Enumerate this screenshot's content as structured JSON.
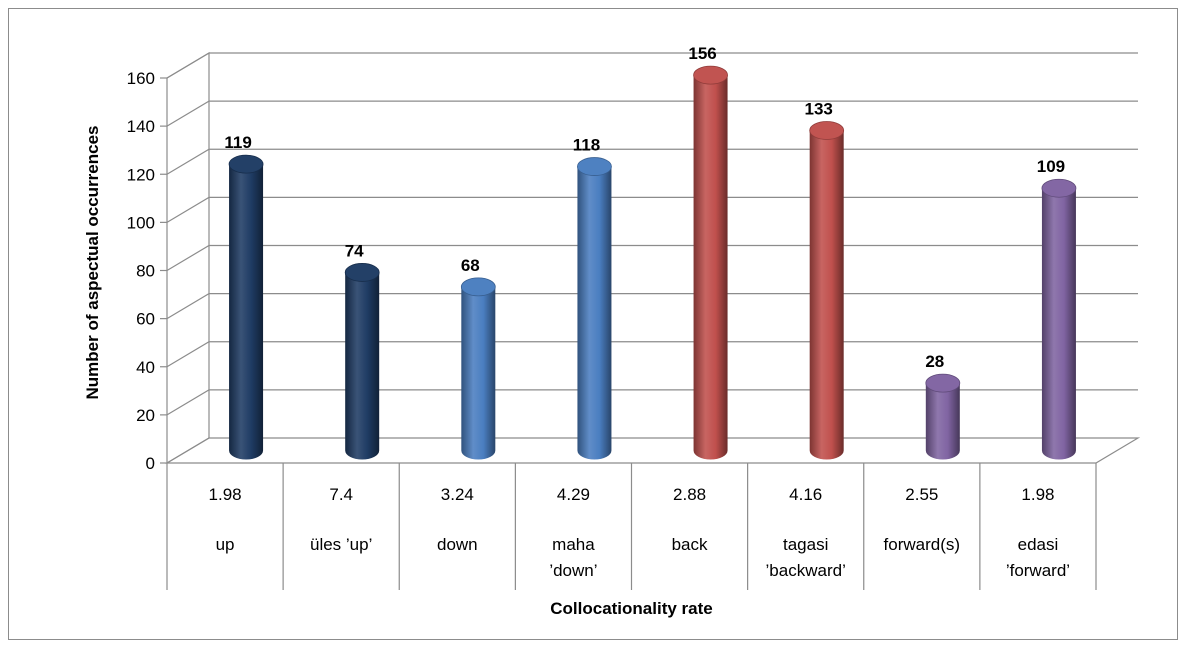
{
  "chart_data": {
    "type": "bar",
    "title": "",
    "xlabel": "Collocationality rate",
    "ylabel": "Number of aspectual occurrences",
    "ylim": [
      0,
      160
    ],
    "y_ticks": [
      "0",
      "20",
      "40",
      "60",
      "80",
      "100",
      "120",
      "140",
      "160"
    ],
    "grid": true,
    "categories": [
      {
        "rate": "1.98",
        "word": "up",
        "word2": ""
      },
      {
        "rate": "7.4",
        "word": "üles ’up’",
        "word2": ""
      },
      {
        "rate": "3.24",
        "word": "down",
        "word2": ""
      },
      {
        "rate": "4.29",
        "word": "maha",
        "word2": "’down’"
      },
      {
        "rate": "2.88",
        "word": "back",
        "word2": ""
      },
      {
        "rate": "4.16",
        "word": "tagasi",
        "word2": "’backward’"
      },
      {
        "rate": "2.55",
        "word": "forward(s)",
        "word2": ""
      },
      {
        "rate": "1.98",
        "word": "edasi",
        "word2": "’forward’"
      }
    ],
    "values": [
      119,
      74,
      68,
      118,
      156,
      133,
      28,
      109
    ],
    "data_labels": [
      "119",
      "74",
      "68",
      "118",
      "156",
      "133",
      "28",
      "109"
    ],
    "bar_colors": [
      "#1f3c64",
      "#1f3c64",
      "#4a7ec0",
      "#4a7ec0",
      "#c0504d",
      "#c0504d",
      "#8064a2",
      "#8064a2"
    ]
  }
}
